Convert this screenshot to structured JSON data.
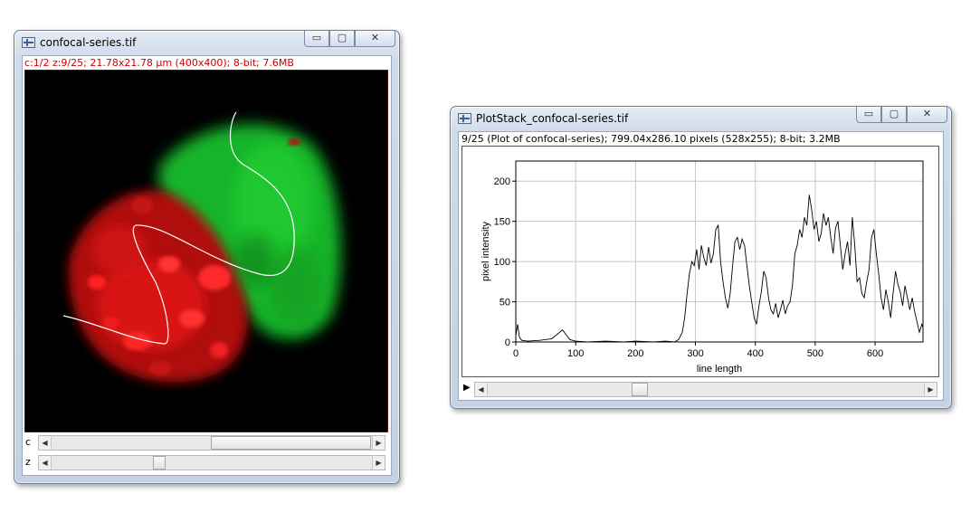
{
  "image_window": {
    "title": "confocal-series.tif",
    "info": "c:1/2 z:9/25; 21.78x21.78 µm (400x400); 8-bit; 7.6MB",
    "info_color": "#cc0000",
    "sliders": [
      {
        "label": "c",
        "position": 0.5
      },
      {
        "label": "z",
        "position": 0.33
      }
    ]
  },
  "plot_window": {
    "title": "PlotStack_confocal-series.tif",
    "info": "9/25 (Plot of confocal-series); 799.04x286.10 pixels (528x255); 8-bit; 3.2MB",
    "slider": {
      "play_glyph": "▶",
      "position": 0.35
    }
  },
  "window_controls": {
    "minimize": "▭",
    "maximize": "▢",
    "close": "✕"
  },
  "chart_data": {
    "type": "line",
    "xlabel": "line length",
    "ylabel": "pixel intensity",
    "xlim": [
      0,
      680
    ],
    "ylim": [
      0,
      225
    ],
    "xticks": [
      0,
      100,
      200,
      300,
      400,
      500,
      600
    ],
    "yticks": [
      0,
      50,
      100,
      150,
      200
    ],
    "grid": true,
    "series": [
      {
        "color": "#000000",
        "x": [
          0,
          3,
          6,
          10,
          20,
          40,
          60,
          70,
          78,
          85,
          90,
          100,
          120,
          150,
          180,
          200,
          230,
          250,
          265,
          272,
          278,
          282,
          286,
          290,
          294,
          298,
          302,
          306,
          310,
          314,
          318,
          322,
          326,
          330,
          334,
          338,
          342,
          346,
          350,
          354,
          358,
          362,
          366,
          370,
          374,
          378,
          382,
          386,
          390,
          394,
          398,
          402,
          406,
          410,
          414,
          418,
          422,
          426,
          430,
          434,
          438,
          442,
          446,
          450,
          454,
          458,
          462,
          466,
          470,
          474,
          478,
          482,
          486,
          490,
          494,
          498,
          502,
          506,
          510,
          514,
          518,
          522,
          526,
          530,
          534,
          538,
          542,
          546,
          550,
          554,
          558,
          562,
          566,
          570,
          574,
          578,
          582,
          586,
          590,
          594,
          598,
          602,
          606,
          610,
          614,
          618,
          622,
          626,
          630,
          634,
          638,
          642,
          646,
          650,
          654,
          658,
          662,
          666,
          670,
          674,
          678,
          680
        ],
        "y": [
          8,
          22,
          6,
          2,
          1,
          2,
          4,
          10,
          15,
          8,
          3,
          1,
          0,
          1,
          0,
          1,
          0,
          1,
          0,
          3,
          12,
          30,
          60,
          85,
          100,
          95,
          115,
          90,
          120,
          105,
          95,
          118,
          98,
          110,
          140,
          145,
          100,
          75,
          55,
          42,
          60,
          95,
          125,
          130,
          115,
          128,
          120,
          95,
          70,
          50,
          30,
          22,
          45,
          62,
          88,
          80,
          55,
          40,
          35,
          48,
          30,
          40,
          52,
          35,
          45,
          50,
          70,
          110,
          120,
          140,
          130,
          155,
          145,
          183,
          165,
          140,
          150,
          125,
          135,
          160,
          145,
          155,
          130,
          110,
          142,
          150,
          120,
          90,
          110,
          125,
          95,
          155,
          120,
          75,
          80,
          60,
          55,
          75,
          90,
          130,
          140,
          110,
          85,
          55,
          40,
          65,
          50,
          30,
          60,
          88,
          72,
          62,
          45,
          70,
          55,
          40,
          55,
          38,
          25,
          12,
          22,
          18
        ]
      }
    ]
  }
}
